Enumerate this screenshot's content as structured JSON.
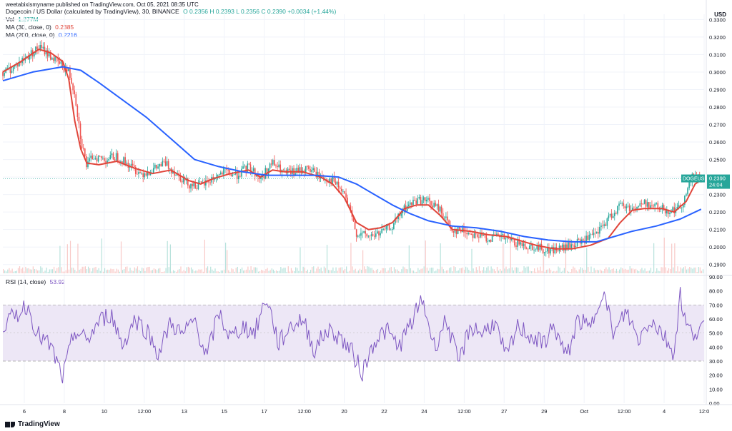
{
  "header": {
    "publisher": "weetabixismyname published on TradingView.com, Oct 05, 2021 08:35 UTC",
    "currency": "USD"
  },
  "legend": {
    "symbol": "Dogecoin / US Dollar (calculated by TradingView), 30, BINANCE",
    "ohlc": "O 0.2356  H 0.2393  L 0.2356  C 0.2390  +0.0034 (+1.44%)",
    "vol_label": "Vol",
    "vol_value": "1.277M",
    "ma30_label": "MA (30, close, 0)",
    "ma30_value": "0.2385",
    "ma200_label": "MA (200, close, 0)",
    "ma200_value": "0.2216",
    "rsi_label": "RSI (14, close)",
    "rsi_value": "53.92"
  },
  "price_tag": {
    "symbol": "DOGEUSD",
    "price": "0.2390",
    "countdown": "24:04"
  },
  "footer": {
    "brand": "TradingView"
  },
  "colors": {
    "ma30": "#e0453a",
    "ma200": "#2962ff",
    "rsi": "#7e57c2",
    "rsi_band": "#ede7f6",
    "up": "#26a69a",
    "down": "#ef5350",
    "grid": "#f0f3fa",
    "axis_text": "#131722"
  },
  "chart_data": [
    {
      "type": "line",
      "title": "Dogecoin / US Dollar (calculated by TradingView), 30, BINANCE",
      "x_tick_labels": [
        "6",
        "8",
        "10",
        "12:00",
        "13",
        "15",
        "17",
        "12:00",
        "20",
        "22",
        "24",
        "12:00",
        "27",
        "29",
        "Oct",
        "12:00",
        "4",
        "12:0"
      ],
      "y_ticks": [
        "0.3300",
        "0.3200",
        "0.3100",
        "0.3000",
        "0.2900",
        "0.2800",
        "0.2700",
        "0.2600",
        "0.2500",
        "0.2400",
        "0.2300",
        "0.2200",
        "0.2100",
        "0.2000",
        "0.1900"
      ],
      "ylim": [
        0.185,
        0.333
      ],
      "price_x": [
        0,
        3,
        6,
        9,
        12,
        14,
        18,
        22,
        24,
        26,
        28,
        30,
        34,
        38,
        42,
        46,
        50,
        54,
        58,
        62,
        66,
        70,
        74,
        78,
        82,
        86,
        90,
        94,
        98,
        102,
        106,
        110,
        114,
        118,
        122,
        126,
        130,
        134,
        138,
        142,
        146,
        150,
        154,
        158,
        162,
        166,
        170,
        174,
        178,
        182,
        186,
        190,
        194,
        198,
        202,
        206,
        210,
        214,
        218,
        222,
        226,
        230,
        233
      ],
      "price_y": [
        0.3,
        0.302,
        0.306,
        0.31,
        0.314,
        0.312,
        0.306,
        0.3,
        0.288,
        0.262,
        0.246,
        0.252,
        0.25,
        0.252,
        0.247,
        0.242,
        0.244,
        0.248,
        0.242,
        0.236,
        0.235,
        0.239,
        0.243,
        0.241,
        0.246,
        0.239,
        0.248,
        0.242,
        0.243,
        0.245,
        0.24,
        0.238,
        0.23,
        0.208,
        0.206,
        0.208,
        0.212,
        0.222,
        0.227,
        0.226,
        0.221,
        0.21,
        0.209,
        0.207,
        0.205,
        0.206,
        0.203,
        0.201,
        0.2,
        0.198,
        0.199,
        0.201,
        0.204,
        0.207,
        0.216,
        0.224,
        0.222,
        0.225,
        0.223,
        0.221,
        0.222,
        0.24,
        0.239
      ],
      "series": [
        {
          "name": "MA (30, close, 0)",
          "x": [
            0,
            6,
            12,
            16,
            20,
            22,
            24,
            26,
            28,
            32,
            38,
            44,
            50,
            56,
            62,
            66,
            70,
            76,
            82,
            86,
            90,
            94,
            100,
            106,
            110,
            114,
            118,
            122,
            126,
            130,
            134,
            138,
            142,
            146,
            150,
            156,
            162,
            168,
            174,
            178,
            184,
            190,
            196,
            202,
            206,
            210,
            214,
            220,
            224,
            228,
            231,
            233
          ],
          "y": [
            0.3,
            0.306,
            0.313,
            0.311,
            0.306,
            0.296,
            0.272,
            0.256,
            0.248,
            0.247,
            0.249,
            0.245,
            0.242,
            0.244,
            0.238,
            0.236,
            0.239,
            0.242,
            0.244,
            0.24,
            0.244,
            0.243,
            0.243,
            0.24,
            0.236,
            0.228,
            0.214,
            0.21,
            0.211,
            0.214,
            0.222,
            0.224,
            0.224,
            0.218,
            0.21,
            0.209,
            0.207,
            0.206,
            0.203,
            0.201,
            0.199,
            0.199,
            0.201,
            0.205,
            0.214,
            0.221,
            0.222,
            0.222,
            0.22,
            0.226,
            0.236,
            0.2385
          ]
        },
        {
          "name": "MA (200, close, 0)",
          "x": [
            0,
            10,
            20,
            26,
            32,
            40,
            48,
            56,
            64,
            72,
            80,
            88,
            96,
            104,
            112,
            118,
            124,
            130,
            136,
            142,
            150,
            158,
            166,
            174,
            182,
            190,
            198,
            204,
            210,
            218,
            226,
            233
          ],
          "y": [
            0.295,
            0.3,
            0.303,
            0.301,
            0.294,
            0.284,
            0.274,
            0.262,
            0.25,
            0.246,
            0.243,
            0.241,
            0.241,
            0.241,
            0.24,
            0.236,
            0.23,
            0.224,
            0.219,
            0.215,
            0.212,
            0.211,
            0.209,
            0.206,
            0.204,
            0.203,
            0.203,
            0.206,
            0.209,
            0.212,
            0.216,
            0.2216
          ]
        }
      ]
    },
    {
      "type": "line",
      "title": "RSI (14, close)",
      "y_ticks": [
        "90.00",
        "80.00",
        "70.00",
        "60.00",
        "50.00",
        "40.00",
        "30.00",
        "20.00",
        "10.00",
        "0.00"
      ],
      "ylim": [
        0,
        90
      ],
      "band": [
        30,
        70
      ],
      "series": [
        {
          "name": "RSI (14, close)",
          "x": [
            0,
            4,
            8,
            12,
            16,
            20,
            24,
            28,
            32,
            36,
            40,
            44,
            48,
            52,
            56,
            60,
            64,
            68,
            72,
            76,
            80,
            84,
            88,
            92,
            96,
            100,
            104,
            108,
            112,
            116,
            120,
            124,
            128,
            132,
            136,
            140,
            144,
            148,
            152,
            156,
            160,
            164,
            168,
            172,
            176,
            180,
            184,
            188,
            192,
            196,
            200,
            204,
            208,
            212,
            216,
            220,
            224,
            226,
            228,
            230,
            233
          ],
          "y": [
            55,
            62,
            70,
            48,
            40,
            18,
            52,
            44,
            58,
            64,
            41,
            60,
            52,
            35,
            58,
            48,
            60,
            32,
            65,
            46,
            55,
            50,
            76,
            42,
            55,
            60,
            38,
            52,
            48,
            38,
            22,
            45,
            52,
            40,
            56,
            74,
            40,
            60,
            28,
            55,
            50,
            58,
            32,
            55,
            48,
            42,
            55,
            32,
            60,
            52,
            82,
            48,
            66,
            45,
            60,
            50,
            36,
            78,
            55,
            50,
            54
          ]
        }
      ]
    }
  ]
}
